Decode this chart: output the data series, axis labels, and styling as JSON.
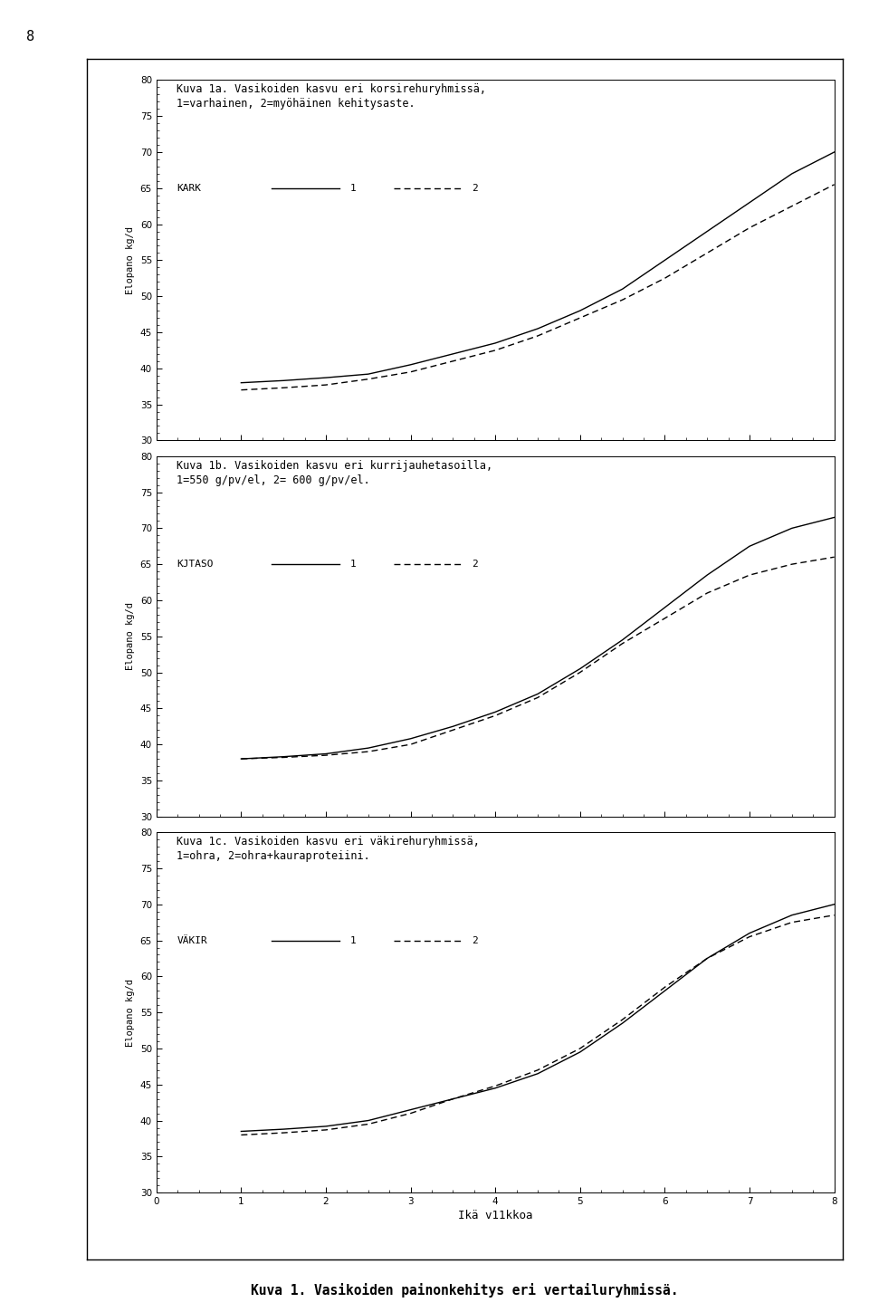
{
  "charts": [
    {
      "title_line1": "Kuva 1a. Vasikoiden kasvu eri korsirehuryhmissä,",
      "title_line2": "1=varhainen, 2=myöhäinen kehitysaste.",
      "legend_label": "KARK",
      "line1_x": [
        1,
        1.5,
        2,
        2.5,
        3,
        3.5,
        4,
        4.5,
        5,
        5.5,
        6,
        6.5,
        7,
        7.5,
        8
      ],
      "line1_y": [
        38.0,
        38.3,
        38.7,
        39.2,
        40.5,
        42.0,
        43.5,
        45.5,
        48.0,
        51.0,
        55.0,
        59.0,
        63.0,
        67.0,
        70.0
      ],
      "line2_x": [
        1,
        1.5,
        2,
        2.5,
        3,
        3.5,
        4,
        4.5,
        5,
        5.5,
        6,
        6.5,
        7,
        7.5,
        8
      ],
      "line2_y": [
        37.0,
        37.3,
        37.7,
        38.5,
        39.5,
        41.0,
        42.5,
        44.5,
        47.0,
        49.5,
        52.5,
        56.0,
        59.5,
        62.5,
        65.5
      ]
    },
    {
      "title_line1": "Kuva 1b. Vasikoiden kasvu eri kurrijauhetasoilla,",
      "title_line2": "1=550 g/pv/el, 2= 600 g/pv/el.",
      "legend_label": "KJTASO",
      "line1_x": [
        1,
        1.5,
        2,
        2.5,
        3,
        3.5,
        4,
        4.5,
        5,
        5.5,
        6,
        6.5,
        7,
        7.5,
        8
      ],
      "line1_y": [
        38.0,
        38.3,
        38.7,
        39.5,
        40.8,
        42.5,
        44.5,
        47.0,
        50.5,
        54.5,
        59.0,
        63.5,
        67.5,
        70.0,
        71.5
      ],
      "line2_x": [
        1,
        1.5,
        2,
        2.5,
        3,
        3.5,
        4,
        4.5,
        5,
        5.5,
        6,
        6.5,
        7,
        7.5,
        8
      ],
      "line2_y": [
        38.0,
        38.2,
        38.5,
        39.0,
        40.0,
        42.0,
        44.0,
        46.5,
        50.0,
        54.0,
        57.5,
        61.0,
        63.5,
        65.0,
        66.0
      ]
    },
    {
      "title_line1": "Kuva 1c. Vasikoiden kasvu eri väkirehuryhmissä,",
      "title_line2": "1=ohra, 2=ohra+kauraproteiini.",
      "legend_label": "VÄKIR",
      "line1_x": [
        1,
        1.5,
        2,
        2.5,
        3,
        3.5,
        4,
        4.5,
        5,
        5.5,
        6,
        6.5,
        7,
        7.5,
        8
      ],
      "line1_y": [
        38.5,
        38.8,
        39.2,
        40.0,
        41.5,
        43.0,
        44.5,
        46.5,
        49.5,
        53.5,
        58.0,
        62.5,
        66.0,
        68.5,
        70.0
      ],
      "line2_x": [
        1,
        1.5,
        2,
        2.5,
        3,
        3.5,
        4,
        4.5,
        5,
        5.5,
        6,
        6.5,
        7,
        7.5,
        8
      ],
      "line2_y": [
        38.0,
        38.3,
        38.7,
        39.5,
        41.0,
        43.0,
        44.8,
        47.0,
        50.0,
        54.0,
        58.5,
        62.5,
        65.5,
        67.5,
        68.5
      ]
    }
  ],
  "xlabel": "Ikä v11kkoa",
  "ylabel": "Elopano kg/d",
  "xlim": [
    0,
    8
  ],
  "ylim": [
    30,
    80
  ],
  "yticks": [
    30,
    35,
    40,
    45,
    50,
    55,
    60,
    65,
    70,
    75,
    80
  ],
  "xticks": [
    0,
    1,
    2,
    3,
    4,
    5,
    6,
    7,
    8
  ],
  "figure_caption": "Kuva 1. Vasikoiden painonkehitys eri vertailuryhmissä.",
  "line1_color": "black",
  "line2_color": "black",
  "line1_style": "-",
  "line2_style": "--",
  "background_color": "white",
  "page_number": "8",
  "outer_box": true
}
